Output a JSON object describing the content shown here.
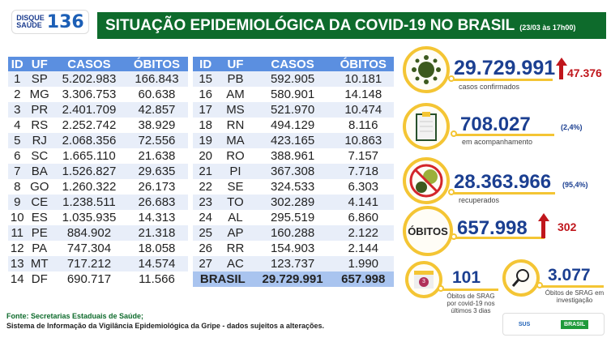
{
  "header": {
    "logo_line1": "DISQUE",
    "logo_line2": "SAÚDE",
    "logo_number": "136",
    "title": "SITUAÇÃO EPIDEMIOLÓGICA DA COVID-19 NO BRASIL",
    "date": "(23/03 às 17h00)"
  },
  "table": {
    "columns": [
      "ID",
      "UF",
      "CASOS",
      "ÓBITOS"
    ],
    "left": [
      [
        "1",
        "SP",
        "5.202.983",
        "166.843"
      ],
      [
        "2",
        "MG",
        "3.306.753",
        "60.638"
      ],
      [
        "3",
        "PR",
        "2.401.709",
        "42.857"
      ],
      [
        "4",
        "RS",
        "2.252.742",
        "38.929"
      ],
      [
        "5",
        "RJ",
        "2.068.356",
        "72.556"
      ],
      [
        "6",
        "SC",
        "1.665.110",
        "21.638"
      ],
      [
        "7",
        "BA",
        "1.526.827",
        "29.635"
      ],
      [
        "8",
        "GO",
        "1.260.322",
        "26.173"
      ],
      [
        "9",
        "CE",
        "1.238.511",
        "26.683"
      ],
      [
        "10",
        "ES",
        "1.035.935",
        "14.313"
      ],
      [
        "11",
        "PE",
        "884.902",
        "21.318"
      ],
      [
        "12",
        "PA",
        "747.304",
        "18.058"
      ],
      [
        "13",
        "MT",
        "717.212",
        "14.574"
      ],
      [
        "14",
        "DF",
        "690.717",
        "11.566"
      ]
    ],
    "right": [
      [
        "15",
        "PB",
        "592.905",
        "10.181"
      ],
      [
        "16",
        "AM",
        "580.901",
        "14.148"
      ],
      [
        "17",
        "MS",
        "521.970",
        "10.474"
      ],
      [
        "18",
        "RN",
        "494.129",
        "8.116"
      ],
      [
        "19",
        "MA",
        "423.165",
        "10.863"
      ],
      [
        "20",
        "RO",
        "388.961",
        "7.157"
      ],
      [
        "21",
        "PI",
        "367.308",
        "7.718"
      ],
      [
        "22",
        "SE",
        "324.533",
        "6.303"
      ],
      [
        "23",
        "TO",
        "302.289",
        "4.141"
      ],
      [
        "24",
        "AL",
        "295.519",
        "6.860"
      ],
      [
        "25",
        "AP",
        "160.288",
        "2.122"
      ],
      [
        "26",
        "RR",
        "154.903",
        "2.144"
      ],
      [
        "27",
        "AC",
        "123.737",
        "1.990"
      ]
    ],
    "total": {
      "label": "BRASIL",
      "casos": "29.729.991",
      "obitos": "657.998"
    }
  },
  "stats": {
    "confirmados": {
      "value": "29.729.991",
      "label": "casos confirmados",
      "increase": "47.376",
      "icon": "virus-icon"
    },
    "acompanhamento": {
      "value": "708.027",
      "label": "em acompanhamento",
      "pct": "(2,4%)",
      "icon": "clipboard-icon"
    },
    "recuperados": {
      "value": "28.363.966",
      "label": "recuperados",
      "pct": "(95,4%)",
      "icon": "no-virus-icon"
    },
    "obitos": {
      "badge": "ÓBITOS",
      "value": "657.998",
      "increase": "302"
    },
    "srag3": {
      "value": "101",
      "label": "Óbitos de SRAG por covid-19 nos últimos 3 dias",
      "cal": "3",
      "icon": "calendar-icon"
    },
    "sragInv": {
      "value": "3.077",
      "label": "Óbitos de SRAG em investigação",
      "icon": "magnifier-icon"
    }
  },
  "footer": {
    "line1": "Fonte: Secretarias Estaduais de Saúde;",
    "line2": "Sistema de Informação da Vigilância Epidemiológica da Gripe - dados sujeitos a alterações.",
    "sus": "SUS",
    "gov": "BRASIL"
  },
  "colors": {
    "green": "#0e6b2c",
    "blue": "#1b3f91",
    "header": "#5b8fe0",
    "yellow": "#f4c534",
    "red": "#c0161c"
  }
}
